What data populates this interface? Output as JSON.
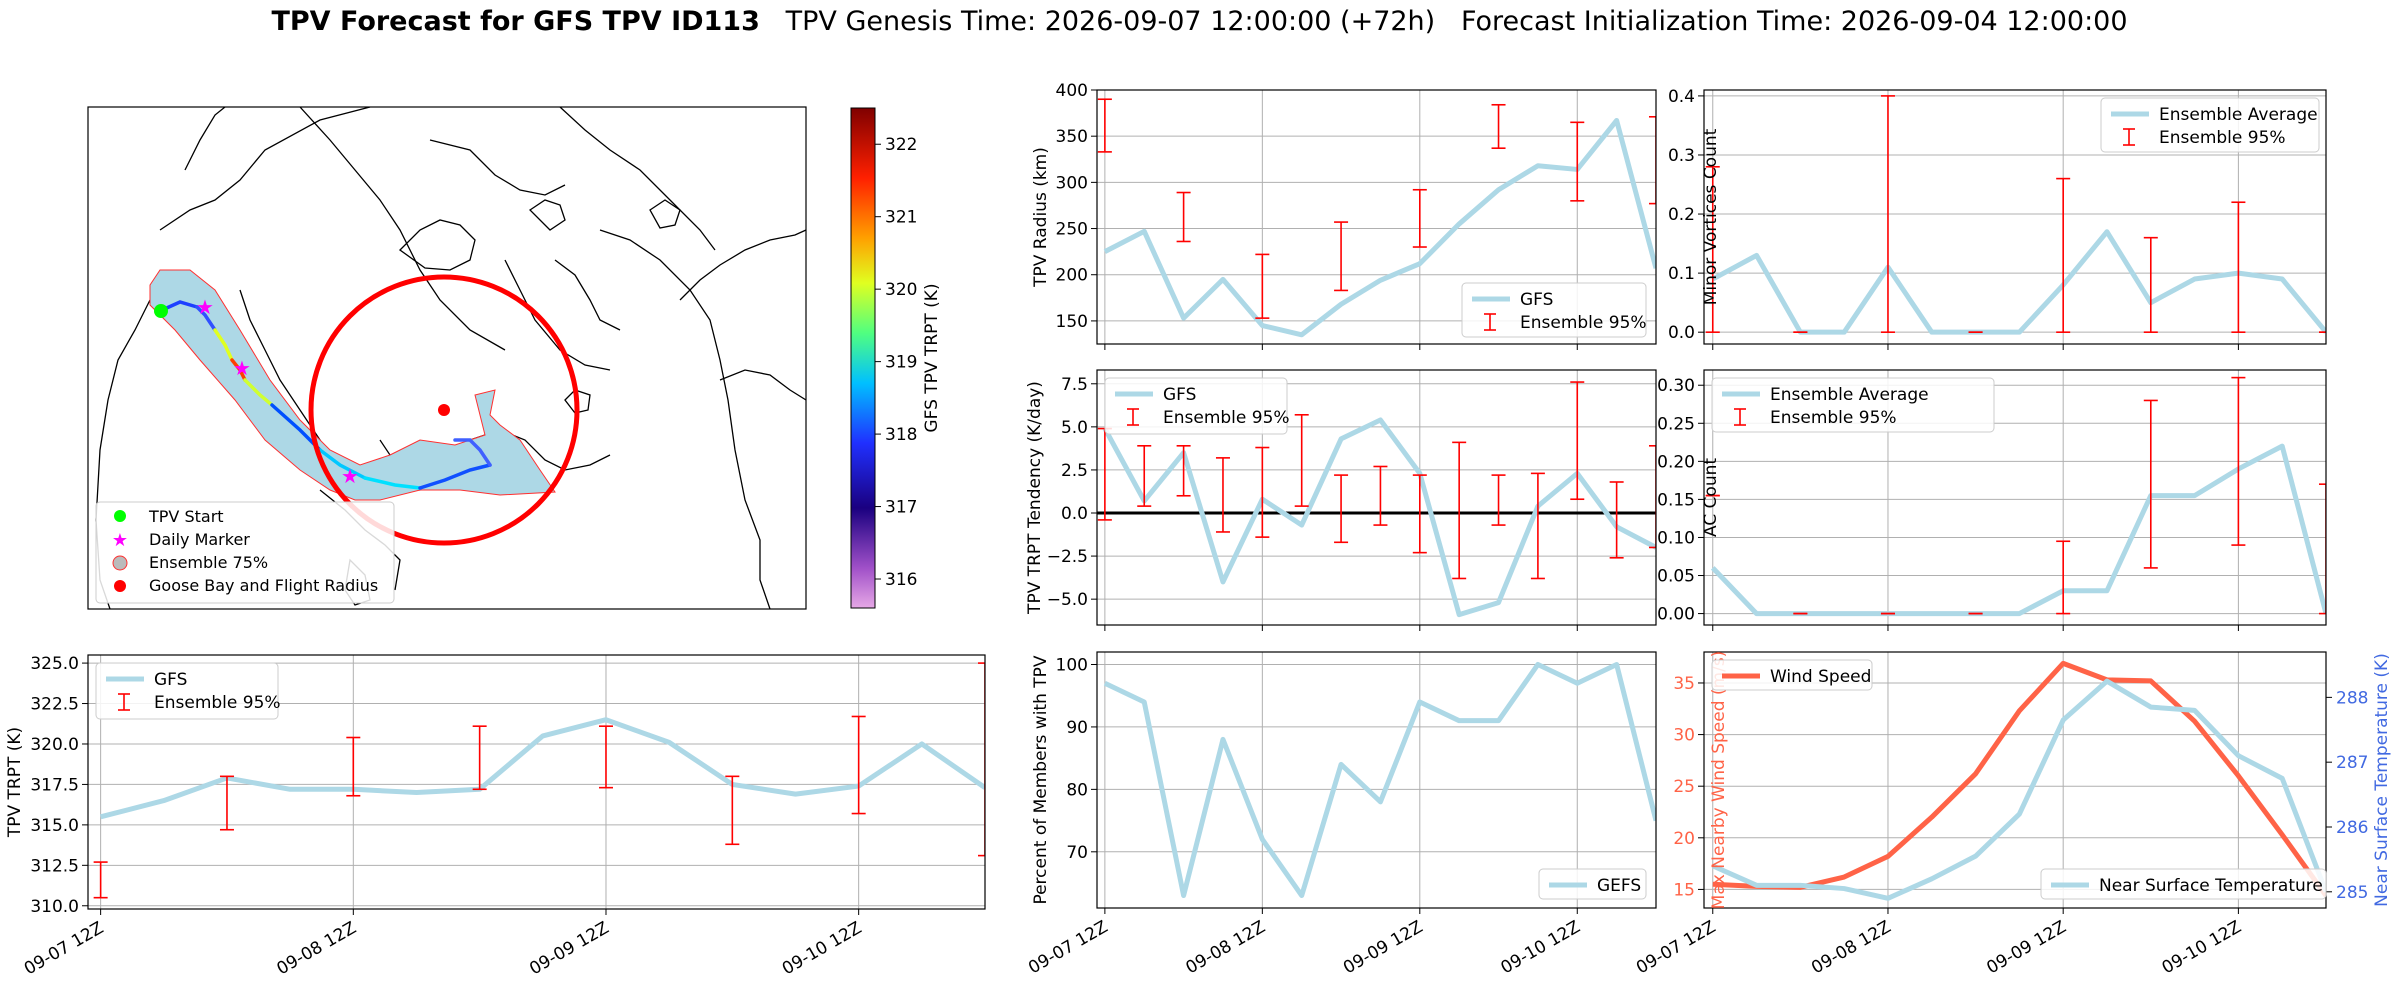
{
  "title": {
    "bold": "TPV Forecast for GFS TPV ID113",
    "rest": "   TPV Genesis Time: 2026-09-07 12:00:00 (+72h)   Forecast Initialization Time: 2026-09-04 12:00:00"
  },
  "colors": {
    "gfs": "#add8e6",
    "ens": "#ff0000",
    "wind": "#ff6347",
    "temp_axis": "#4169e1",
    "goose": "#ff0000"
  },
  "time_ticks": [
    "09-07 12Z",
    "09-08 12Z",
    "09-09 12Z",
    "09-10 12Z"
  ],
  "map": {
    "legend": [
      "TPV Start",
      "Daily Marker",
      "Ensemble 75%",
      "Goose Bay and Flight Radius"
    ],
    "colorbar": {
      "label": "GFS TPV TRPT (K)",
      "ticks": [
        316,
        317,
        318,
        319,
        320,
        321,
        322
      ],
      "range": [
        315.6,
        322.5
      ]
    }
  },
  "chart_data": [
    {
      "type": "line",
      "panel": "trpt",
      "ylabel": "TPV TRPT (K)",
      "ylim": [
        309.8,
        325.5
      ],
      "yticks": [
        "310.0",
        "312.5",
        "315.0",
        "317.5",
        "320.0",
        "322.5",
        "325.0"
      ],
      "x": [
        0,
        0.25,
        0.5,
        0.75,
        1.0,
        1.25,
        1.5,
        1.75,
        2.0,
        2.25,
        2.5,
        2.75,
        3.0,
        3.25,
        3.5
      ],
      "series": [
        {
          "name": "GFS",
          "values": [
            315.5,
            316.5,
            317.9,
            317.2,
            317.2,
            317.0,
            317.2,
            320.5,
            321.5,
            320.1,
            317.5,
            316.9,
            317.4,
            320.0,
            317.3
          ]
        }
      ],
      "error_bars": {
        "name": "Ensemble 95%",
        "x": [
          0,
          0.5,
          1.0,
          1.5,
          2.0,
          2.5,
          3.0,
          3.5
        ],
        "low": [
          310.5,
          314.7,
          316.8,
          317.2,
          317.3,
          313.8,
          315.7,
          313.1
        ],
        "high": [
          312.7,
          318.0,
          320.4,
          321.1,
          321.1,
          318.0,
          321.7,
          325.0
        ]
      },
      "legend": [
        "GFS",
        "Ensemble 95%"
      ]
    },
    {
      "type": "line",
      "panel": "radius",
      "ylabel": "TPV Radius (km)",
      "ylim": [
        125,
        400
      ],
      "yticks": [
        "150",
        "200",
        "250",
        "300",
        "350",
        "400"
      ],
      "x": [
        0,
        0.25,
        0.5,
        0.75,
        1.0,
        1.25,
        1.5,
        1.75,
        2.0,
        2.25,
        2.5,
        2.75,
        3.0,
        3.25,
        3.5
      ],
      "series": [
        {
          "name": "GFS",
          "values": [
            225,
            247,
            153,
            195,
            145,
            135,
            168,
            194,
            212,
            255,
            292,
            318,
            314,
            367,
            207
          ]
        }
      ],
      "error_bars": {
        "name": "Ensemble 95%",
        "x": [
          0,
          0.5,
          1.0,
          1.5,
          2.0,
          2.5,
          3.0,
          3.5
        ],
        "low": [
          333,
          236,
          153,
          183,
          230,
          337,
          280,
          277
        ],
        "high": [
          390,
          289,
          222,
          257,
          292,
          384,
          365,
          371
        ]
      },
      "legend": [
        "GFS",
        "Ensemble 95%"
      ]
    },
    {
      "type": "line",
      "panel": "tendency",
      "ylabel": "TPV TRPT Tendency (K/day)",
      "ylim": [
        -6.5,
        8.3
      ],
      "yticks": [
        "−5.0",
        "−2.5",
        "0.0",
        "2.5",
        "5.0",
        "7.5"
      ],
      "x": [
        0,
        0.25,
        0.5,
        0.75,
        1.0,
        1.25,
        1.5,
        1.75,
        2.0,
        2.25,
        2.5,
        2.75,
        3.0,
        3.25,
        3.5
      ],
      "series": [
        {
          "name": "GFS",
          "values": [
            4.9,
            0.7,
            3.5,
            -4.0,
            0.8,
            -0.7,
            4.3,
            5.4,
            2.3,
            -5.9,
            -5.2,
            0.4,
            2.3,
            -0.8,
            -2.0
          ]
        }
      ],
      "error_bars": {
        "name": "Ensemble 95%",
        "x": [
          0,
          0.25,
          0.5,
          0.75,
          1.0,
          1.25,
          1.5,
          1.75,
          2.0,
          2.25,
          2.5,
          2.75,
          3.0,
          3.25,
          3.5
        ],
        "low": [
          -0.4,
          0.4,
          1.0,
          -1.1,
          -1.4,
          0.4,
          -1.7,
          -0.7,
          -2.3,
          -3.8,
          -0.7,
          -3.8,
          0.8,
          -2.6,
          -2.0
        ],
        "high": [
          4.9,
          3.9,
          3.9,
          3.2,
          3.8,
          5.7,
          2.2,
          2.7,
          2.2,
          4.1,
          2.2,
          2.3,
          7.6,
          1.8,
          3.9
        ]
      },
      "legend": [
        "GFS",
        "Ensemble 95%"
      ]
    },
    {
      "type": "line",
      "panel": "percent",
      "ylabel": "Percent of Members with TPV",
      "ylim": [
        61,
        102
      ],
      "yticks": [
        "70",
        "80",
        "90",
        "100"
      ],
      "x": [
        0,
        0.25,
        0.5,
        0.75,
        1.0,
        1.25,
        1.5,
        1.75,
        2.0,
        2.25,
        2.5,
        2.75,
        3.0,
        3.25,
        3.5
      ],
      "series": [
        {
          "name": "GEFS",
          "values": [
            97,
            94,
            63,
            88,
            72,
            63,
            84,
            78,
            94,
            91,
            91,
            100,
            97,
            100,
            75
          ]
        }
      ],
      "legend": [
        "GEFS"
      ]
    },
    {
      "type": "line",
      "panel": "minor",
      "ylabel": "Minor Vortices Count",
      "ylim": [
        -0.02,
        0.41
      ],
      "yticks": [
        "0.0",
        "0.1",
        "0.2",
        "0.3",
        "0.4"
      ],
      "x": [
        0,
        0.25,
        0.5,
        0.75,
        1.0,
        1.25,
        1.5,
        1.75,
        2.0,
        2.25,
        2.5,
        2.75,
        3.0,
        3.25,
        3.5
      ],
      "series": [
        {
          "name": "Ensemble Average",
          "values": [
            0.09,
            0.13,
            0.0,
            0.0,
            0.11,
            0.0,
            0.0,
            0.0,
            0.08,
            0.17,
            0.05,
            0.09,
            0.1,
            0.09,
            0.0
          ]
        }
      ],
      "error_bars": {
        "name": "Ensemble 95%",
        "x": [
          0,
          0.5,
          1.0,
          1.5,
          2.0,
          2.5,
          3.0,
          3.5
        ],
        "low": [
          0.0,
          0.0,
          0.0,
          0.0,
          0.0,
          0.0,
          0.0,
          0.0
        ],
        "high": [
          0.28,
          0.0,
          0.4,
          0.0,
          0.26,
          0.16,
          0.22,
          0.0
        ]
      },
      "legend": [
        "Ensemble Average",
        "Ensemble 95%"
      ]
    },
    {
      "type": "line",
      "panel": "ac",
      "ylabel": "AC Count",
      "ylim": [
        -0.015,
        0.32
      ],
      "yticks": [
        "0.00",
        "0.05",
        "0.10",
        "0.15",
        "0.20",
        "0.25",
        "0.30"
      ],
      "x": [
        0,
        0.25,
        0.5,
        0.75,
        1.0,
        1.25,
        1.5,
        1.75,
        2.0,
        2.25,
        2.5,
        2.75,
        3.0,
        3.25,
        3.5
      ],
      "series": [
        {
          "name": "Ensemble Average",
          "values": [
            0.06,
            0.0,
            0.0,
            0.0,
            0.0,
            0.0,
            0.0,
            0.0,
            0.03,
            0.03,
            0.155,
            0.155,
            0.19,
            0.22,
            0.0
          ]
        }
      ],
      "error_bars": {
        "name": "Ensemble 95%",
        "x": [
          0,
          0.5,
          1.0,
          1.5,
          2.0,
          2.5,
          3.0,
          3.5
        ],
        "low": [
          0.155,
          0.0,
          0.0,
          0.0,
          0.0,
          0.06,
          0.09,
          0.0
        ],
        "high": [
          0.155,
          0.0,
          0.0,
          0.0,
          0.095,
          0.28,
          0.31,
          0.17
        ]
      },
      "legend": [
        "Ensemble Average",
        "Ensemble 95%"
      ]
    },
    {
      "type": "line",
      "panel": "wind",
      "ylabel": "Max Nearby Wind Speed (m/s)",
      "ylim": [
        13.2,
        38
      ],
      "yticks": [
        "15",
        "20",
        "25",
        "30",
        "35"
      ],
      "y2label": "Near Surface Temperature (K)",
      "y2lim": [
        284.75,
        288.7
      ],
      "y2ticks": [
        "285",
        "286",
        "287",
        "288"
      ],
      "x": [
        0,
        0.25,
        0.5,
        0.75,
        1.0,
        1.25,
        1.5,
        1.75,
        2.0,
        2.25,
        2.5,
        2.75,
        3.0,
        3.25,
        3.5
      ],
      "series": [
        {
          "name": "Wind Speed",
          "axis": "left",
          "values": [
            15.5,
            15.3,
            15.2,
            16.2,
            18.2,
            22.0,
            26.2,
            32.3,
            36.9,
            35.3,
            35.2,
            31.3,
            26.0,
            20.3,
            14.4
          ]
        },
        {
          "name": "Near Surface Temperature",
          "axis": "right",
          "values": [
            285.4,
            285.1,
            285.1,
            285.05,
            284.9,
            285.2,
            285.55,
            286.2,
            287.65,
            288.25,
            287.85,
            287.8,
            287.1,
            286.75,
            285.0
          ]
        }
      ],
      "legend": [
        "Wind Speed",
        "Near Surface Temperature"
      ]
    }
  ]
}
